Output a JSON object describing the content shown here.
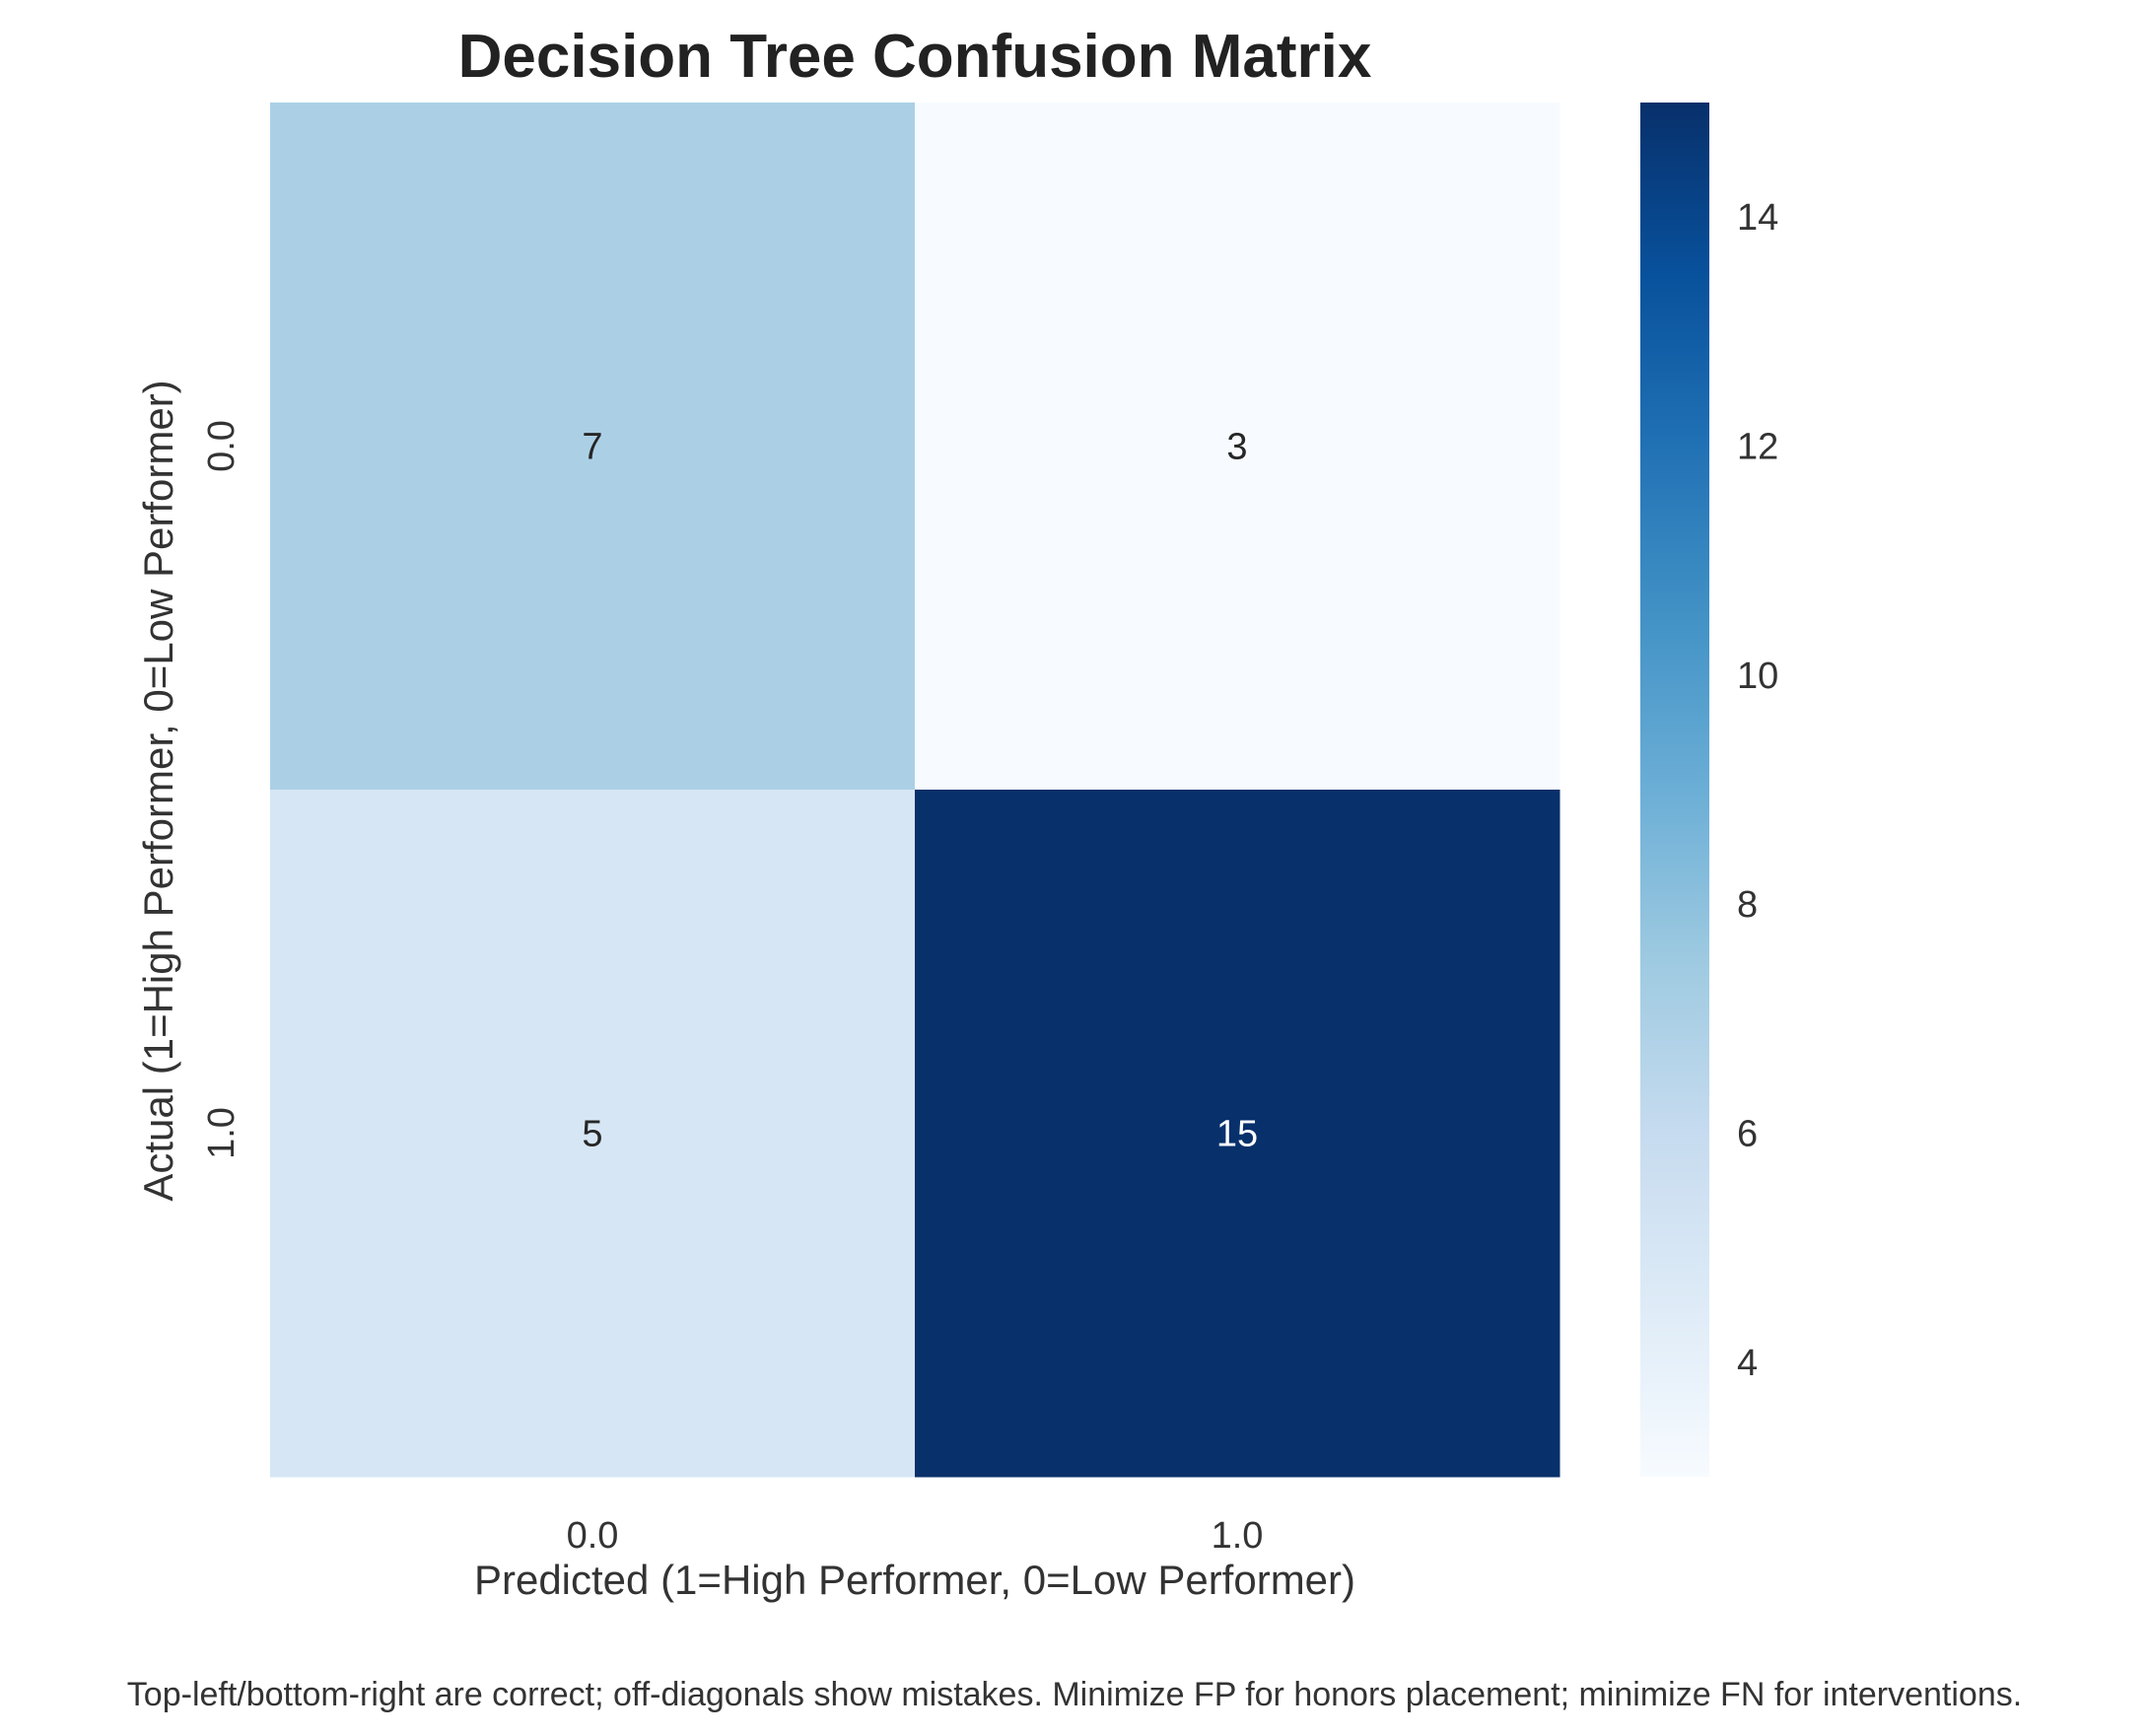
{
  "chart_data": {
    "type": "heatmap",
    "title": "Decision Tree Confusion Matrix",
    "xlabel": "Predicted (1=High Performer, 0=Low Performer)",
    "ylabel": "Actual (1=High Performer, 0=Low Performer)",
    "x_categories": [
      "0.0",
      "1.0"
    ],
    "y_categories": [
      "0.0",
      "1.0"
    ],
    "values": [
      [
        7,
        3
      ],
      [
        5,
        15
      ]
    ],
    "colormap": "Blues",
    "color_range": [
      3,
      15
    ],
    "colorbar_ticks": [
      4,
      6,
      8,
      10,
      12,
      14
    ],
    "annotate": true
  },
  "caption": "Top-left/bottom-right are correct; off-diagonals show mistakes. Minimize FP for honors placement; minimize FN for interventions."
}
